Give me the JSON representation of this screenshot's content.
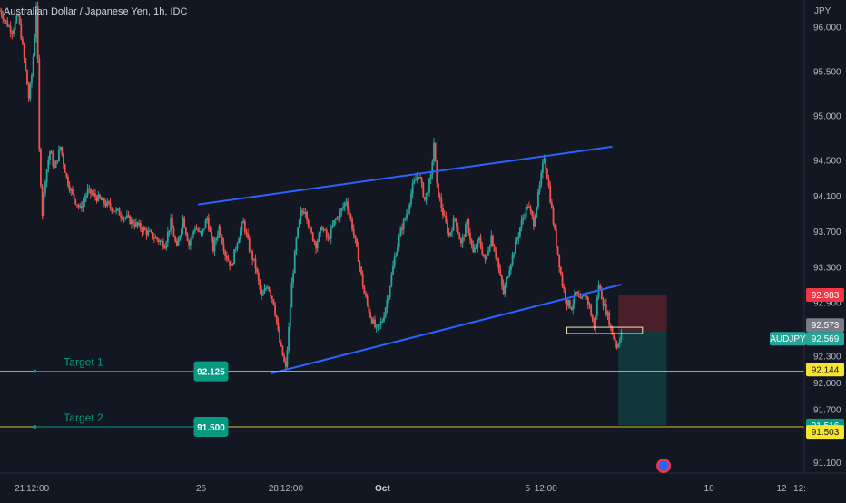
{
  "header": {
    "title": "Australian Dollar / Japanese Yen, 1h, IDC",
    "currency": "JPY"
  },
  "chart_data": {
    "type": "candlestick",
    "symbol": "AUDJPY",
    "ylim": [
      90.98,
      96.3
    ],
    "x_domain": [
      "2020-09-20 11:00",
      "2020-10-12 15:00"
    ],
    "y_ticks": [
      "96.000",
      "95.500",
      "95.000",
      "94.500",
      "94.100",
      "93.700",
      "93.300",
      "92.900",
      "92.300",
      "92.000",
      "91.700",
      "91.100"
    ],
    "x_ticks": [
      {
        "t": "2020-09-21 00:00",
        "label": "21"
      },
      {
        "t": "2020-09-21 12:00",
        "label": "12:00"
      },
      {
        "t": "2020-09-26 00:00",
        "label": "26"
      },
      {
        "t": "2020-09-28 00:00",
        "label": "28"
      },
      {
        "t": "2020-09-28 12:00",
        "label": "12:00"
      },
      {
        "t": "2020-10-01 00:00",
        "label": "Oct"
      },
      {
        "t": "2020-10-05 00:00",
        "label": "5"
      },
      {
        "t": "2020-10-05 12:00",
        "label": "12:00"
      },
      {
        "t": "2020-10-10 00:00",
        "label": "10"
      },
      {
        "t": "2020-10-12 00:00",
        "label": "12"
      },
      {
        "t": "2020-10-12 12:00",
        "label": "12:"
      }
    ],
    "price_path": [
      [
        "2020-09-20 11:00",
        96.18
      ],
      [
        "2020-09-20 15:00",
        96.05
      ],
      [
        "2020-09-20 19:00",
        95.95
      ],
      [
        "2020-09-20 23:00",
        96.12
      ],
      [
        "2020-09-21 01:00",
        95.9
      ],
      [
        "2020-09-21 04:00",
        95.5
      ],
      [
        "2020-09-21 06:00",
        95.2
      ],
      [
        "2020-09-21 08:00",
        95.45
      ],
      [
        "2020-09-21 10:00",
        95.9
      ],
      [
        "2020-09-21 11:00",
        96.25
      ],
      [
        "2020-09-21 12:00",
        95.6
      ],
      [
        "2020-09-21 13:00",
        94.6
      ],
      [
        "2020-09-21 15:00",
        93.9
      ],
      [
        "2020-09-21 17:00",
        94.3
      ],
      [
        "2020-09-21 20:00",
        94.6
      ],
      [
        "2020-09-21 23:00",
        94.4
      ],
      [
        "2020-09-22 03:00",
        94.65
      ],
      [
        "2020-09-22 07:00",
        94.3
      ],
      [
        "2020-09-22 11:00",
        94.1
      ],
      [
        "2020-09-22 16:00",
        93.95
      ],
      [
        "2020-09-22 21:00",
        94.15
      ],
      [
        "2020-09-25 00:00",
        93.55
      ],
      [
        "2020-09-25 04:00",
        93.8
      ],
      [
        "2020-09-25 08:00",
        93.5
      ],
      [
        "2020-09-25 12:00",
        93.85
      ],
      [
        "2020-09-25 16:00",
        93.55
      ],
      [
        "2020-09-25 20:00",
        93.75
      ],
      [
        "2020-09-26 00:00",
        93.65
      ],
      [
        "2020-09-26 04:00",
        93.85
      ],
      [
        "2020-09-26 08:00",
        93.5
      ],
      [
        "2020-09-26 12:00",
        93.75
      ],
      [
        "2020-09-26 16:00",
        93.45
      ],
      [
        "2020-09-26 20:00",
        93.3
      ],
      [
        "2020-09-27 00:00",
        93.6
      ],
      [
        "2020-09-27 04:00",
        93.8
      ],
      [
        "2020-09-27 08:00",
        93.5
      ],
      [
        "2020-09-27 12:00",
        93.3
      ],
      [
        "2020-09-27 16:00",
        92.95
      ],
      [
        "2020-09-27 20:00",
        93.1
      ],
      [
        "2020-09-28 00:00",
        92.9
      ],
      [
        "2020-09-28 04:00",
        92.45
      ],
      [
        "2020-09-28 08:00",
        92.15
      ],
      [
        "2020-09-28 10:00",
        92.6
      ],
      [
        "2020-09-28 12:00",
        93.1
      ],
      [
        "2020-09-28 15:00",
        93.6
      ],
      [
        "2020-09-28 18:00",
        93.9
      ],
      [
        "2020-09-28 21:00",
        93.95
      ],
      [
        "2020-09-29 00:00",
        93.7
      ],
      [
        "2020-09-29 04:00",
        93.55
      ],
      [
        "2020-09-29 08:00",
        93.75
      ],
      [
        "2020-09-29 12:00",
        93.6
      ],
      [
        "2020-09-29 16:00",
        93.8
      ],
      [
        "2020-09-29 20:00",
        93.9
      ],
      [
        "2020-09-30 00:00",
        94.05
      ],
      [
        "2020-09-30 04:00",
        93.75
      ],
      [
        "2020-09-30 08:00",
        93.4
      ],
      [
        "2020-09-30 12:00",
        93.0
      ],
      [
        "2020-09-30 16:00",
        92.75
      ],
      [
        "2020-09-30 20:00",
        92.58
      ],
      [
        "2020-10-01 00:00",
        92.7
      ],
      [
        "2020-10-01 04:00",
        93.0
      ],
      [
        "2020-10-01 08:00",
        93.4
      ],
      [
        "2020-10-01 12:00",
        93.7
      ],
      [
        "2020-10-01 16:00",
        93.9
      ],
      [
        "2020-10-01 20:00",
        94.2
      ],
      [
        "2020-10-02 00:00",
        94.35
      ],
      [
        "2020-10-02 04:00",
        94.05
      ],
      [
        "2020-10-02 08:00",
        94.3
      ],
      [
        "2020-10-02 10:00",
        94.7
      ],
      [
        "2020-10-02 12:00",
        94.2
      ],
      [
        "2020-10-02 16:00",
        93.9
      ],
      [
        "2020-10-02 20:00",
        93.65
      ],
      [
        "2020-10-03 00:00",
        93.85
      ],
      [
        "2020-10-03 04:00",
        93.55
      ],
      [
        "2020-10-03 08:00",
        93.8
      ],
      [
        "2020-10-03 12:00",
        93.45
      ],
      [
        "2020-10-03 16:00",
        93.6
      ],
      [
        "2020-10-03 20:00",
        93.35
      ],
      [
        "2020-10-04 00:00",
        93.65
      ],
      [
        "2020-10-04 04:00",
        93.35
      ],
      [
        "2020-10-04 08:00",
        93.0
      ],
      [
        "2020-10-04 12:00",
        93.3
      ],
      [
        "2020-10-04 16:00",
        93.55
      ],
      [
        "2020-10-04 20:00",
        93.8
      ],
      [
        "2020-10-05 00:00",
        94.0
      ],
      [
        "2020-10-05 04:00",
        93.8
      ],
      [
        "2020-10-05 08:00",
        94.2
      ],
      [
        "2020-10-05 11:00",
        94.55
      ],
      [
        "2020-10-05 14:00",
        94.2
      ],
      [
        "2020-10-05 17:00",
        93.8
      ],
      [
        "2020-10-05 20:00",
        93.45
      ],
      [
        "2020-10-05 23:00",
        93.1
      ],
      [
        "2020-10-06 02:00",
        92.9
      ],
      [
        "2020-10-06 05:00",
        92.85
      ],
      [
        "2020-10-06 08:00",
        93.0
      ],
      [
        "2020-10-06 11:00",
        92.9
      ],
      [
        "2020-10-06 14:00",
        93.0
      ],
      [
        "2020-10-06 17:00",
        92.85
      ],
      [
        "2020-10-06 20:00",
        92.6
      ],
      [
        "2020-10-06 23:00",
        93.1
      ],
      [
        "2020-10-07 02:00",
        92.9
      ],
      [
        "2020-10-07 05:00",
        92.75
      ],
      [
        "2020-10-07 08:00",
        92.55
      ],
      [
        "2020-10-07 11:00",
        92.4
      ],
      [
        "2020-10-07 14:00",
        92.569
      ]
    ],
    "pattern": {
      "type": "rising-wedge",
      "upper_line": [
        [
          "2020-09-25 22:00",
          94.0
        ],
        [
          "2020-10-07 08:00",
          94.65
        ]
      ],
      "lower_line": [
        [
          "2020-09-27 22:00",
          92.1
        ],
        [
          "2020-10-07 14:00",
          93.1
        ]
      ]
    },
    "consolidation_box": {
      "start": "2020-10-06 02:00",
      "end": "2020-10-08 04:00",
      "low": 92.55,
      "high": 92.62
    },
    "position": {
      "side": "short",
      "entry": 92.573,
      "stop": 92.983,
      "target": 91.516,
      "start": "2020-10-07 12:00",
      "end": "2020-10-08 20:00"
    },
    "targets": [
      {
        "name": "Target 1",
        "price": 92.125,
        "axis_label": "92.144",
        "axis_price": 92.144,
        "label_from": "2020-09-21 10:00",
        "box_at": "2020-09-26 18:00"
      },
      {
        "name": "Target 2",
        "price": 91.5,
        "axis_label": "91.503",
        "axis_price": 91.503,
        "label_from": "2020-09-21 10:00",
        "box_at": "2020-09-26 18:00"
      }
    ],
    "price_labels": {
      "symbol": "AUDJPY",
      "last_price": "92.569",
      "entry_price": "92.573",
      "stop_price": "92.983",
      "target_price": "91.516"
    },
    "colors": {
      "background": "#131722",
      "up": "#26a69a",
      "down": "#ef5350",
      "pattern": "#2962ff",
      "target_line": "#d4c12a",
      "target_label": "#089981",
      "stop_zone": "rgba(242,54,69,0.25)",
      "profit_zone": "rgba(8,153,129,0.25)",
      "stop_label": "#f23645",
      "entry_label": "#787b86",
      "last_label": "#26a69a",
      "yellow_label": "#f7e42e",
      "teal_label": "#089981"
    }
  }
}
